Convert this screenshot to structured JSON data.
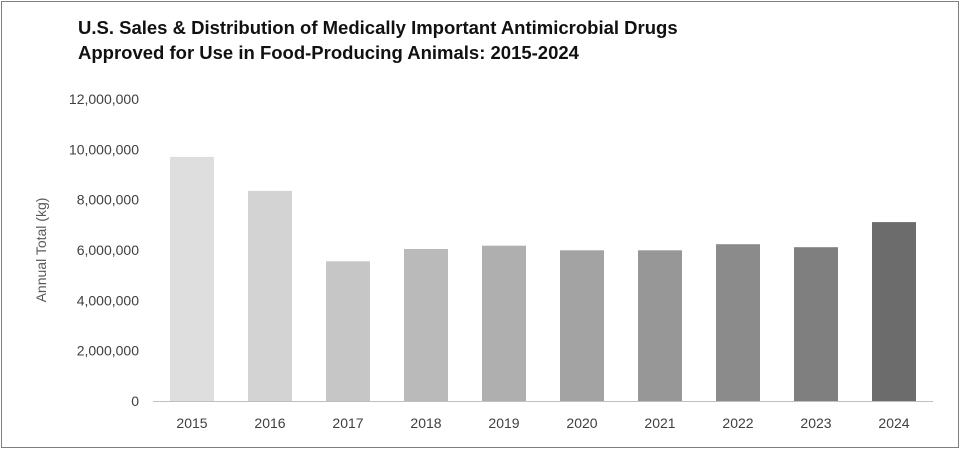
{
  "chart_data": {
    "type": "bar",
    "title": [
      "U.S. Sales & Distribution of Medically Important Antimicrobial Drugs",
      "Approved for Use in Food-Producing Animals: 2015-2024"
    ],
    "xlabel": "",
    "ylabel": "Annual Total (kg)",
    "categories": [
      "2015",
      "2016",
      "2017",
      "2018",
      "2019",
      "2020",
      "2021",
      "2022",
      "2023",
      "2024"
    ],
    "values": [
      9700000,
      8350000,
      5550000,
      6040000,
      6170000,
      5990000,
      5990000,
      6230000,
      6110000,
      7110000
    ],
    "ylim": [
      0,
      12000000
    ],
    "yticks": [
      0,
      2000000,
      4000000,
      6000000,
      8000000,
      10000000,
      12000000
    ],
    "ytick_labels": [
      "0",
      "2,000,000",
      "4,000,000",
      "6,000,000",
      "8,000,000",
      "10,000,000",
      "12,000,000"
    ],
    "bar_colors": [
      "#dedede",
      "#d3d3d3",
      "#c6c6c6",
      "#bababa",
      "#afafaf",
      "#a3a3a3",
      "#979797",
      "#8b8b8b",
      "#7f7f7f",
      "#6c6c6c"
    ],
    "grid": false,
    "legend": "none"
  }
}
